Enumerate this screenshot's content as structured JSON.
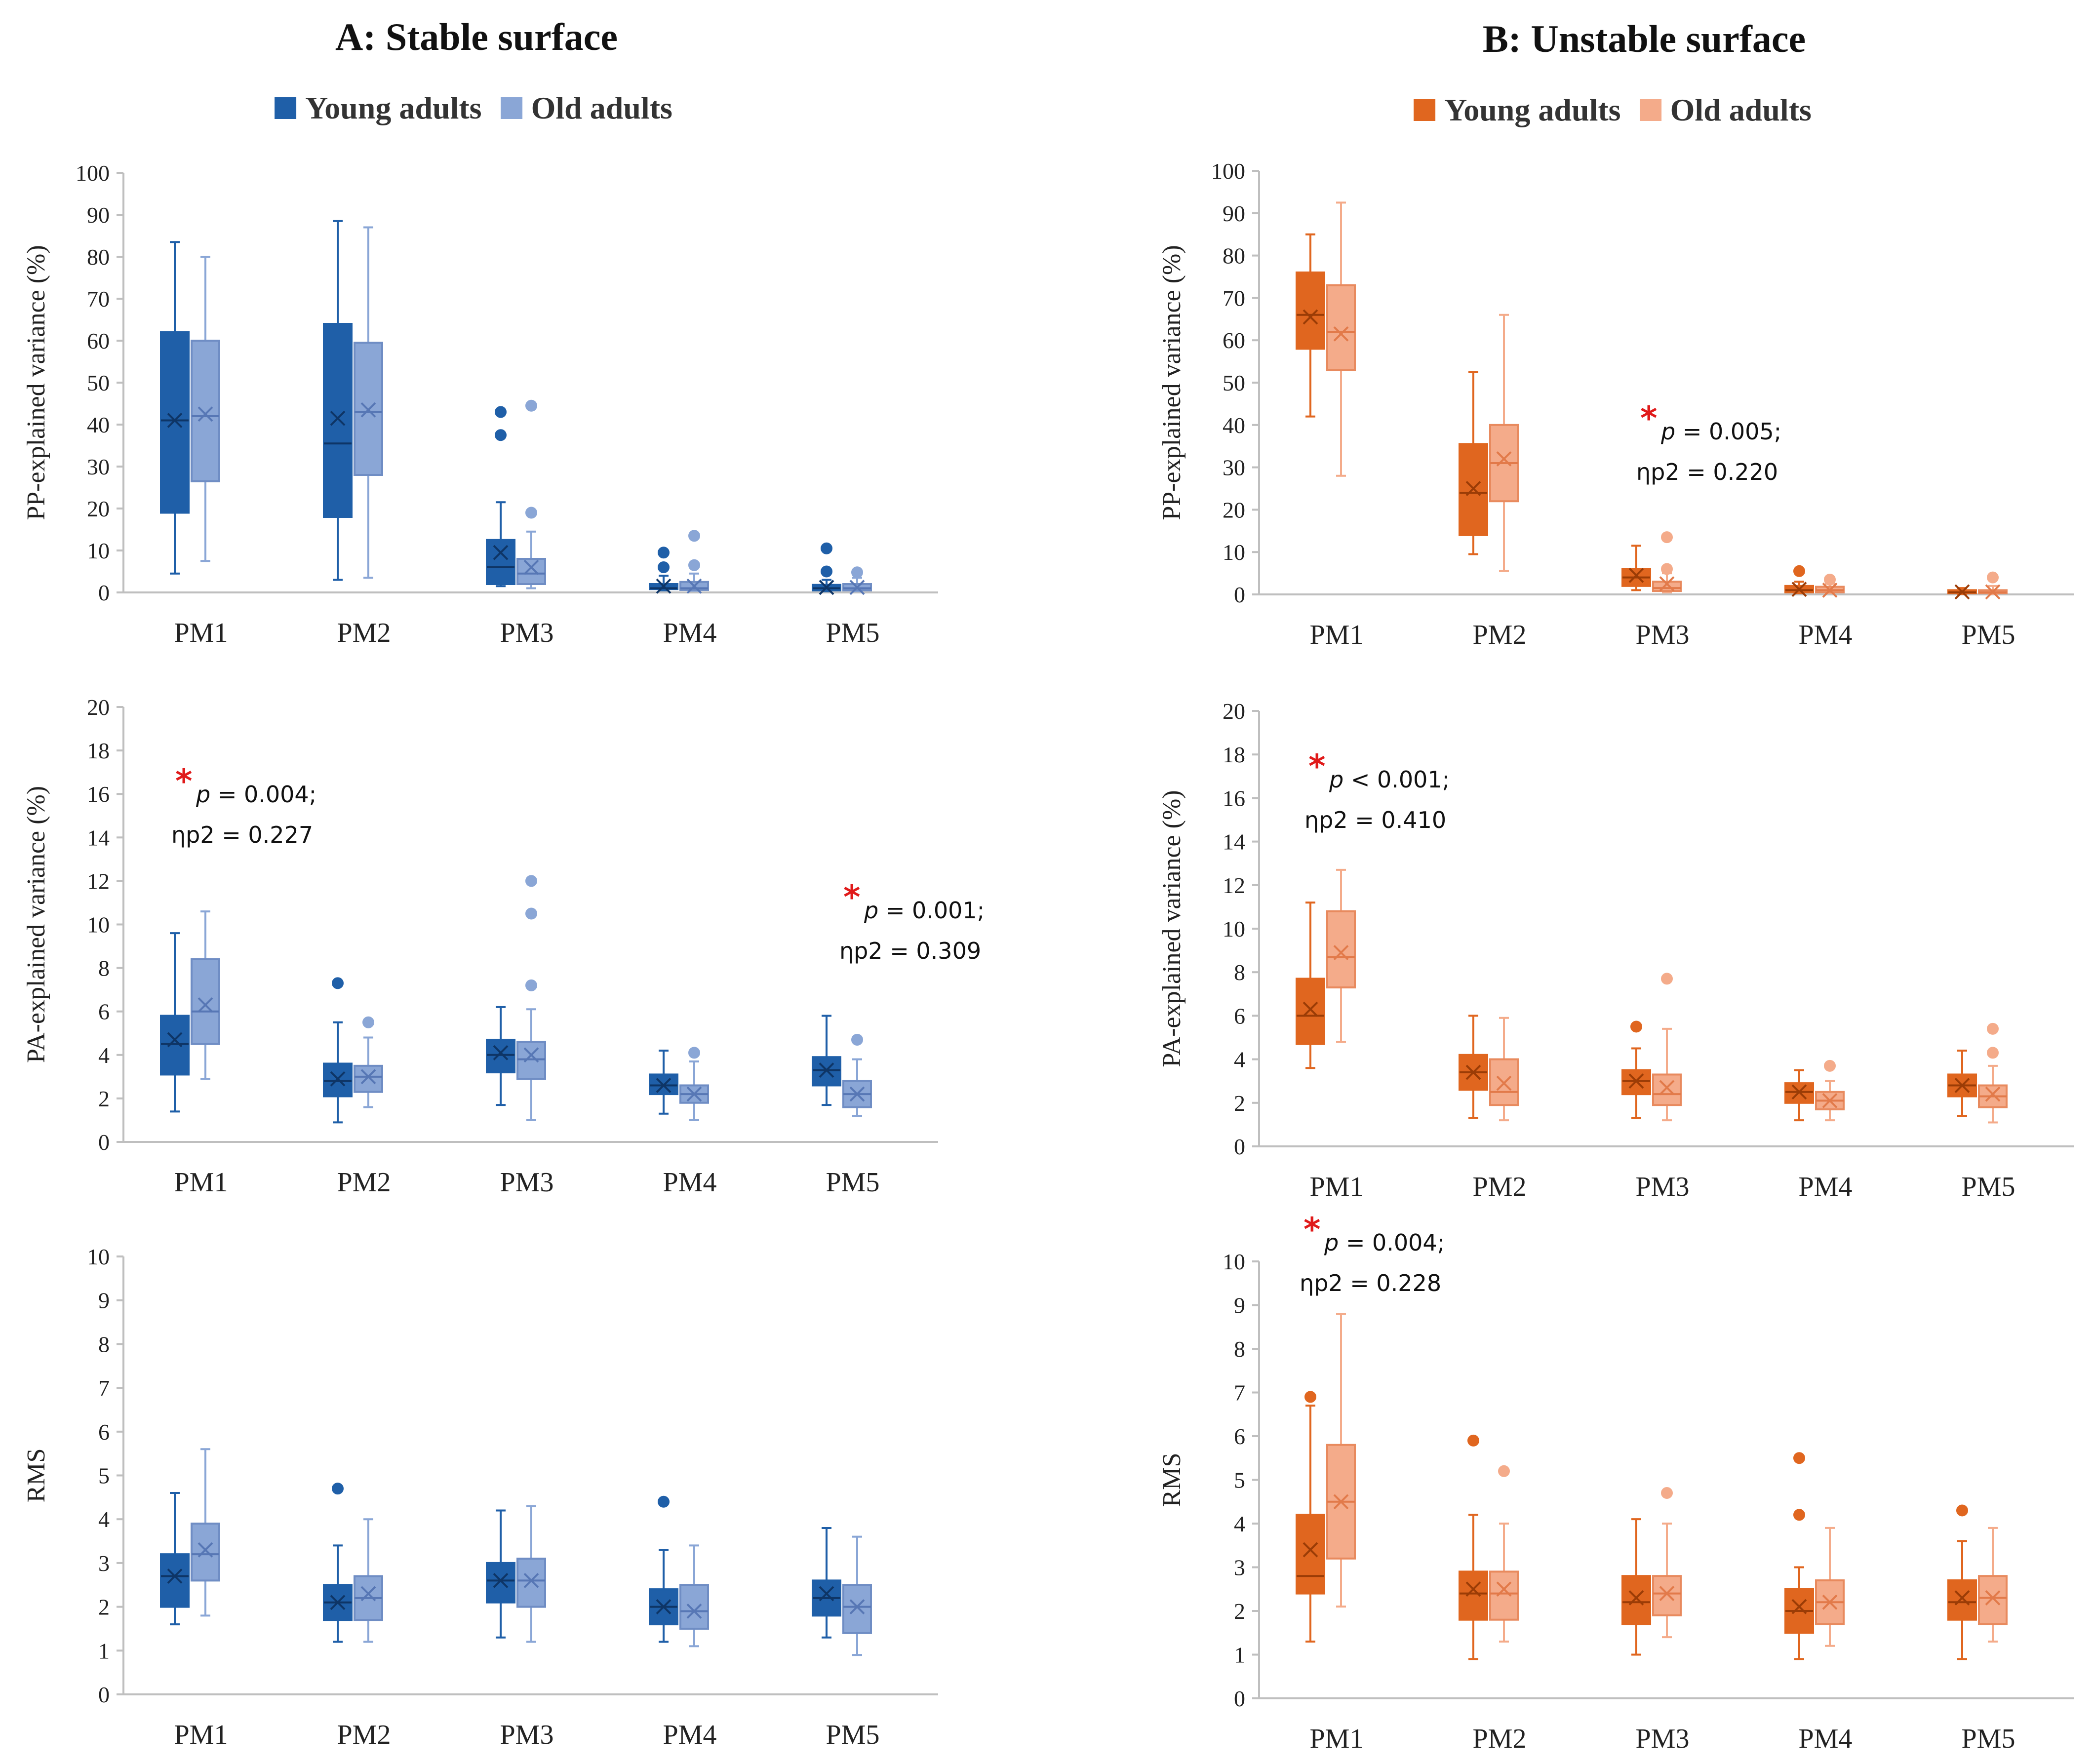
{
  "colors": {
    "stable_young": "#1f5fa8",
    "stable_old": "#8aa6d6",
    "unstable_young": "#e0661f",
    "unstable_old": "#f4ab8a",
    "asterisk": "#e01a1a",
    "axis": "#bfbfbf",
    "text": "#222222"
  },
  "panels": [
    {
      "id": "A",
      "title": "A: Stable surface",
      "legend": [
        "Young adults",
        "Old adults"
      ]
    },
    {
      "id": "B",
      "title": "B: Unstable surface",
      "legend": [
        "Young adults",
        "Old adults"
      ]
    }
  ],
  "chart_data": [
    {
      "type": "boxplot",
      "panel": "A",
      "metric": "PP",
      "ylabel": "PP-explained variance (%)",
      "ylim": [
        0,
        100
      ],
      "yticks": [
        0,
        10,
        20,
        30,
        40,
        50,
        60,
        70,
        80,
        90,
        100
      ],
      "categories": [
        "PM1",
        "PM2",
        "PM3",
        "PM4",
        "PM5"
      ],
      "series": [
        {
          "name": "Young adults",
          "boxes": [
            {
              "min": 4.5,
              "q1": 19,
              "median": 41,
              "q3": 62,
              "max": 83.5,
              "mean": 41,
              "outliers": []
            },
            {
              "min": 3,
              "q1": 18,
              "median": 35.5,
              "q3": 64,
              "max": 88.5,
              "mean": 41.5,
              "outliers": []
            },
            {
              "min": 1.5,
              "q1": 2,
              "median": 6,
              "q3": 12.5,
              "max": 21.5,
              "mean": 9.5,
              "outliers": [
                37.5,
                43
              ]
            },
            {
              "min": 0.5,
              "q1": 0.8,
              "median": 1,
              "q3": 2,
              "max": 4,
              "mean": 1.5,
              "outliers": [
                6,
                9.5
              ]
            },
            {
              "min": 0.3,
              "q1": 0.5,
              "median": 1,
              "q3": 1.8,
              "max": 3,
              "mean": 1.2,
              "outliers": [
                5,
                10.5
              ]
            }
          ]
        },
        {
          "name": "Old adults",
          "boxes": [
            {
              "min": 7.5,
              "q1": 26.5,
              "median": 42,
              "q3": 60,
              "max": 80,
              "mean": 42.5,
              "outliers": []
            },
            {
              "min": 3.5,
              "q1": 28,
              "median": 43,
              "q3": 59.5,
              "max": 87,
              "mean": 43.5,
              "outliers": []
            },
            {
              "min": 1,
              "q1": 2,
              "median": 4.5,
              "q3": 8,
              "max": 14.5,
              "mean": 6,
              "outliers": [
                19,
                44.5
              ]
            },
            {
              "min": 0.4,
              "q1": 0.6,
              "median": 1,
              "q3": 2.5,
              "max": 4.5,
              "mean": 1.5,
              "outliers": [
                6.5,
                13.5
              ]
            },
            {
              "min": 0.3,
              "q1": 0.5,
              "median": 1,
              "q3": 2,
              "max": 3.5,
              "mean": 1.2,
              "outliers": [
                4.8
              ]
            }
          ]
        }
      ],
      "annotations": []
    },
    {
      "type": "boxplot",
      "panel": "A",
      "metric": "PA",
      "ylabel": "PA-explained variance (%)",
      "ylim": [
        0,
        20
      ],
      "yticks": [
        0,
        2,
        4,
        6,
        8,
        10,
        12,
        14,
        16,
        18,
        20
      ],
      "categories": [
        "PM1",
        "PM2",
        "PM3",
        "PM4",
        "PM5"
      ],
      "series": [
        {
          "name": "Young adults",
          "boxes": [
            {
              "min": 1.4,
              "q1": 3.1,
              "median": 4.5,
              "q3": 5.8,
              "max": 9.6,
              "mean": 4.7,
              "outliers": []
            },
            {
              "min": 0.9,
              "q1": 2.1,
              "median": 2.8,
              "q3": 3.6,
              "max": 5.5,
              "mean": 2.9,
              "outliers": [
                7.3
              ]
            },
            {
              "min": 1.7,
              "q1": 3.2,
              "median": 4,
              "q3": 4.7,
              "max": 6.2,
              "mean": 4.1,
              "outliers": []
            },
            {
              "min": 1.3,
              "q1": 2.2,
              "median": 2.6,
              "q3": 3.1,
              "max": 4.2,
              "mean": 2.6,
              "outliers": []
            },
            {
              "min": 1.7,
              "q1": 2.6,
              "median": 3.3,
              "q3": 3.9,
              "max": 5.8,
              "mean": 3.3,
              "outliers": []
            }
          ]
        },
        {
          "name": "Old adults",
          "boxes": [
            {
              "min": 2.9,
              "q1": 4.5,
              "median": 6,
              "q3": 8.4,
              "max": 10.6,
              "mean": 6.3,
              "outliers": []
            },
            {
              "min": 1.6,
              "q1": 2.3,
              "median": 3,
              "q3": 3.5,
              "max": 4.8,
              "mean": 3,
              "outliers": [
                5.5
              ]
            },
            {
              "min": 1,
              "q1": 2.9,
              "median": 3.8,
              "q3": 4.6,
              "max": 6.1,
              "mean": 4,
              "outliers": [
                7.2,
                10.5,
                12
              ]
            },
            {
              "min": 1,
              "q1": 1.8,
              "median": 2.2,
              "q3": 2.6,
              "max": 3.7,
              "mean": 2.2,
              "outliers": [
                4.1
              ]
            },
            {
              "min": 1.2,
              "q1": 1.6,
              "median": 2.2,
              "q3": 2.8,
              "max": 3.8,
              "mean": 2.2,
              "outliers": [
                4.7
              ]
            }
          ]
        }
      ],
      "annotations": [
        {
          "category_index": 0,
          "star": "*",
          "p": "p",
          "ptext": " = 0.004;",
          "eta": "ηp2 = 0.227"
        },
        {
          "category_index": 4,
          "star": "*",
          "p": "p",
          "ptext": " = 0.001;",
          "eta": "ηp2 = 0.309"
        }
      ]
    },
    {
      "type": "boxplot",
      "panel": "A",
      "metric": "RMS",
      "ylabel": "RMS",
      "ylim": [
        0,
        10
      ],
      "yticks": [
        0,
        1,
        2,
        3,
        4,
        5,
        6,
        7,
        8,
        9,
        10
      ],
      "categories": [
        "PM1",
        "PM2",
        "PM3",
        "PM4",
        "PM5"
      ],
      "series": [
        {
          "name": "Young adults",
          "boxes": [
            {
              "min": 1.6,
              "q1": 2,
              "median": 2.7,
              "q3": 3.2,
              "max": 4.6,
              "mean": 2.7,
              "outliers": []
            },
            {
              "min": 1.2,
              "q1": 1.7,
              "median": 2.1,
              "q3": 2.5,
              "max": 3.4,
              "mean": 2.1,
              "outliers": [
                4.7
              ]
            },
            {
              "min": 1.3,
              "q1": 2.1,
              "median": 2.6,
              "q3": 3,
              "max": 4.2,
              "mean": 2.6,
              "outliers": []
            },
            {
              "min": 1.2,
              "q1": 1.6,
              "median": 2,
              "q3": 2.4,
              "max": 3.3,
              "mean": 2,
              "outliers": [
                4.4
              ]
            },
            {
              "min": 1.3,
              "q1": 1.8,
              "median": 2.2,
              "q3": 2.6,
              "max": 3.8,
              "mean": 2.3,
              "outliers": []
            }
          ]
        },
        {
          "name": "Old adults",
          "boxes": [
            {
              "min": 1.8,
              "q1": 2.6,
              "median": 3.2,
              "q3": 3.9,
              "max": 5.6,
              "mean": 3.3,
              "outliers": []
            },
            {
              "min": 1.2,
              "q1": 1.7,
              "median": 2.2,
              "q3": 2.7,
              "max": 4,
              "mean": 2.3,
              "outliers": []
            },
            {
              "min": 1.2,
              "q1": 2,
              "median": 2.6,
              "q3": 3.1,
              "max": 4.3,
              "mean": 2.6,
              "outliers": []
            },
            {
              "min": 1.1,
              "q1": 1.5,
              "median": 1.9,
              "q3": 2.5,
              "max": 3.4,
              "mean": 1.9,
              "outliers": []
            },
            {
              "min": 0.9,
              "q1": 1.4,
              "median": 2,
              "q3": 2.5,
              "max": 3.6,
              "mean": 2,
              "outliers": []
            }
          ]
        }
      ],
      "annotations": []
    },
    {
      "type": "boxplot",
      "panel": "B",
      "metric": "PP",
      "ylabel": "PP-explained variance (%)",
      "ylim": [
        0,
        100
      ],
      "yticks": [
        0,
        10,
        20,
        30,
        40,
        50,
        60,
        70,
        80,
        90,
        100
      ],
      "categories": [
        "PM1",
        "PM2",
        "PM3",
        "PM4",
        "PM5"
      ],
      "series": [
        {
          "name": "Young adults",
          "boxes": [
            {
              "min": 42,
              "q1": 58,
              "median": 66,
              "q3": 76,
              "max": 85,
              "mean": 65.5,
              "outliers": []
            },
            {
              "min": 9.5,
              "q1": 14,
              "median": 24,
              "q3": 35.5,
              "max": 52.5,
              "mean": 25,
              "outliers": []
            },
            {
              "min": 1,
              "q1": 2,
              "median": 4,
              "q3": 6,
              "max": 11.5,
              "mean": 4.5,
              "outliers": []
            },
            {
              "min": 0.3,
              "q1": 0.5,
              "median": 1,
              "q3": 2,
              "max": 3,
              "mean": 1.2,
              "outliers": [
                5.5
              ]
            },
            {
              "min": 0.1,
              "q1": 0.3,
              "median": 0.5,
              "q3": 1,
              "max": 1.5,
              "mean": 0.6,
              "outliers": []
            }
          ]
        },
        {
          "name": "Old adults",
          "boxes": [
            {
              "min": 28,
              "q1": 53,
              "median": 62,
              "q3": 73,
              "max": 92.5,
              "mean": 61.5,
              "outliers": []
            },
            {
              "min": 5.5,
              "q1": 22,
              "median": 31,
              "q3": 40,
              "max": 66,
              "mean": 32,
              "outliers": []
            },
            {
              "min": 0.5,
              "q1": 0.8,
              "median": 1.5,
              "q3": 3,
              "max": 5,
              "mean": 2.5,
              "outliers": [
                6,
                13.5
              ]
            },
            {
              "min": 0.3,
              "q1": 0.5,
              "median": 1,
              "q3": 1.8,
              "max": 2.5,
              "mean": 1,
              "outliers": [
                3.5
              ]
            },
            {
              "min": 0.1,
              "q1": 0.3,
              "median": 0.5,
              "q3": 1,
              "max": 2,
              "mean": 0.6,
              "outliers": [
                4
              ]
            }
          ]
        }
      ],
      "annotations": [
        {
          "category_index": 2,
          "star": "*",
          "p": "p",
          "ptext": " = 0.005;",
          "eta": "ηp2 = 0.220"
        }
      ]
    },
    {
      "type": "boxplot",
      "panel": "B",
      "metric": "PA",
      "ylabel": "PA-explained variance (%)",
      "ylim": [
        0,
        20
      ],
      "yticks": [
        0,
        2,
        4,
        6,
        8,
        10,
        12,
        14,
        16,
        18,
        20
      ],
      "categories": [
        "PM1",
        "PM2",
        "PM3",
        "PM4",
        "PM5"
      ],
      "series": [
        {
          "name": "Young adults",
          "boxes": [
            {
              "min": 3.6,
              "q1": 4.7,
              "median": 6,
              "q3": 7.7,
              "max": 11.2,
              "mean": 6.3,
              "outliers": []
            },
            {
              "min": 1.3,
              "q1": 2.6,
              "median": 3.4,
              "q3": 4.2,
              "max": 6,
              "mean": 3.4,
              "outliers": []
            },
            {
              "min": 1.3,
              "q1": 2.4,
              "median": 3,
              "q3": 3.5,
              "max": 4.5,
              "mean": 3,
              "outliers": [
                5.5
              ]
            },
            {
              "min": 1.2,
              "q1": 2,
              "median": 2.5,
              "q3": 2.9,
              "max": 3.5,
              "mean": 2.5,
              "outliers": []
            },
            {
              "min": 1.4,
              "q1": 2.3,
              "median": 2.8,
              "q3": 3.3,
              "max": 4.4,
              "mean": 2.8,
              "outliers": []
            }
          ]
        },
        {
          "name": "Old adults",
          "boxes": [
            {
              "min": 4.8,
              "q1": 7.3,
              "median": 8.7,
              "q3": 10.8,
              "max": 12.7,
              "mean": 8.9,
              "outliers": []
            },
            {
              "min": 1.2,
              "q1": 1.9,
              "median": 2.5,
              "q3": 4,
              "max": 5.9,
              "mean": 2.9,
              "outliers": []
            },
            {
              "min": 1.2,
              "q1": 1.9,
              "median": 2.4,
              "q3": 3.3,
              "max": 5.4,
              "mean": 2.7,
              "outliers": [
                7.7
              ]
            },
            {
              "min": 1.2,
              "q1": 1.7,
              "median": 2.1,
              "q3": 2.5,
              "max": 3,
              "mean": 2.1,
              "outliers": [
                3.7
              ]
            },
            {
              "min": 1.1,
              "q1": 1.8,
              "median": 2.3,
              "q3": 2.8,
              "max": 3.7,
              "mean": 2.4,
              "outliers": [
                4.3,
                5.4
              ]
            }
          ]
        }
      ],
      "annotations": [
        {
          "category_index": 0,
          "star": "*",
          "p": "p",
          "ptext": " < 0.001;",
          "eta": "ηp2 = 0.410"
        }
      ]
    },
    {
      "type": "boxplot",
      "panel": "B",
      "metric": "RMS",
      "ylabel": "RMS",
      "ylim": [
        0,
        10
      ],
      "yticks": [
        0,
        1,
        2,
        3,
        4,
        5,
        6,
        7,
        8,
        9,
        10
      ],
      "categories": [
        "PM1",
        "PM2",
        "PM3",
        "PM4",
        "PM5"
      ],
      "series": [
        {
          "name": "Young adults",
          "boxes": [
            {
              "min": 1.3,
              "q1": 2.4,
              "median": 2.8,
              "q3": 4.2,
              "max": 6.7,
              "mean": 3.4,
              "outliers": [
                6.9
              ]
            },
            {
              "min": 0.9,
              "q1": 1.8,
              "median": 2.4,
              "q3": 2.9,
              "max": 4.2,
              "mean": 2.5,
              "outliers": [
                5.9
              ]
            },
            {
              "min": 1,
              "q1": 1.7,
              "median": 2.2,
              "q3": 2.8,
              "max": 4.1,
              "mean": 2.3,
              "outliers": []
            },
            {
              "min": 0.9,
              "q1": 1.5,
              "median": 2,
              "q3": 2.5,
              "max": 3,
              "mean": 2.1,
              "outliers": [
                4.2,
                5.5
              ]
            },
            {
              "min": 0.9,
              "q1": 1.8,
              "median": 2.2,
              "q3": 2.7,
              "max": 3.6,
              "mean": 2.3,
              "outliers": [
                4.3
              ]
            }
          ]
        },
        {
          "name": "Old adults",
          "boxes": [
            {
              "min": 2.1,
              "q1": 3.2,
              "median": 4.5,
              "q3": 5.8,
              "max": 8.8,
              "mean": 4.5,
              "outliers": []
            },
            {
              "min": 1.3,
              "q1": 1.8,
              "median": 2.4,
              "q3": 2.9,
              "max": 4,
              "mean": 2.5,
              "outliers": [
                5.2
              ]
            },
            {
              "min": 1.4,
              "q1": 1.9,
              "median": 2.4,
              "q3": 2.8,
              "max": 4,
              "mean": 2.4,
              "outliers": [
                4.7
              ]
            },
            {
              "min": 1.2,
              "q1": 1.7,
              "median": 2.2,
              "q3": 2.7,
              "max": 3.9,
              "mean": 2.2,
              "outliers": []
            },
            {
              "min": 1.3,
              "q1": 1.7,
              "median": 2.3,
              "q3": 2.8,
              "max": 3.9,
              "mean": 2.3,
              "outliers": []
            }
          ]
        }
      ],
      "annotations": [
        {
          "category_index": 0,
          "star": "*",
          "p": "p",
          "ptext": " = 0.004;",
          "eta": "ηp2 = 0.228"
        }
      ]
    }
  ]
}
